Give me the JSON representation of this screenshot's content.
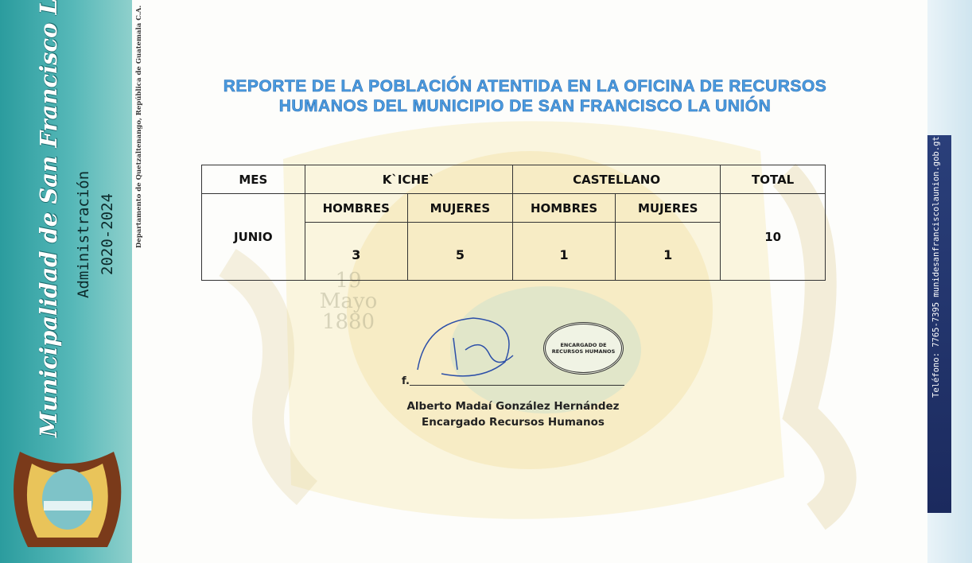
{
  "sidebar": {
    "municipality": "Municipalidad de San Francisco La Unión",
    "administration": "Administración",
    "period": "2020-2024",
    "department": "Departamento de Quetzaltenango, República de Guatemala C.A."
  },
  "title": "REPORTE DE LA POBLACIÓN ATENTIDA EN LA OFICINA DE RECURSOS HUMANOS DEL MUNICIPIO DE SAN FRANCISCO LA UNIÓN",
  "table": {
    "header": [
      "MES",
      "K`ICHE`",
      "CASTELLANO",
      "TOTAL"
    ],
    "subheader": [
      "HOMBRES",
      "MUJERES",
      "HOMBRES",
      "MUJERES"
    ],
    "row": {
      "month": "JUNIO",
      "values": [
        3,
        5,
        1,
        1
      ],
      "total": 10
    }
  },
  "watermark": "19 Mayo 1880",
  "seal": "ENCARGADO DE RECURSOS HUMANOS",
  "signature": {
    "prefix": "f.",
    "name": "Alberto Madaí González Hernández",
    "role": "Encargado Recursos Humanos"
  },
  "contact": "Teléfono: 7765-7395  munidesanfranciscolaunion.gob.gt"
}
